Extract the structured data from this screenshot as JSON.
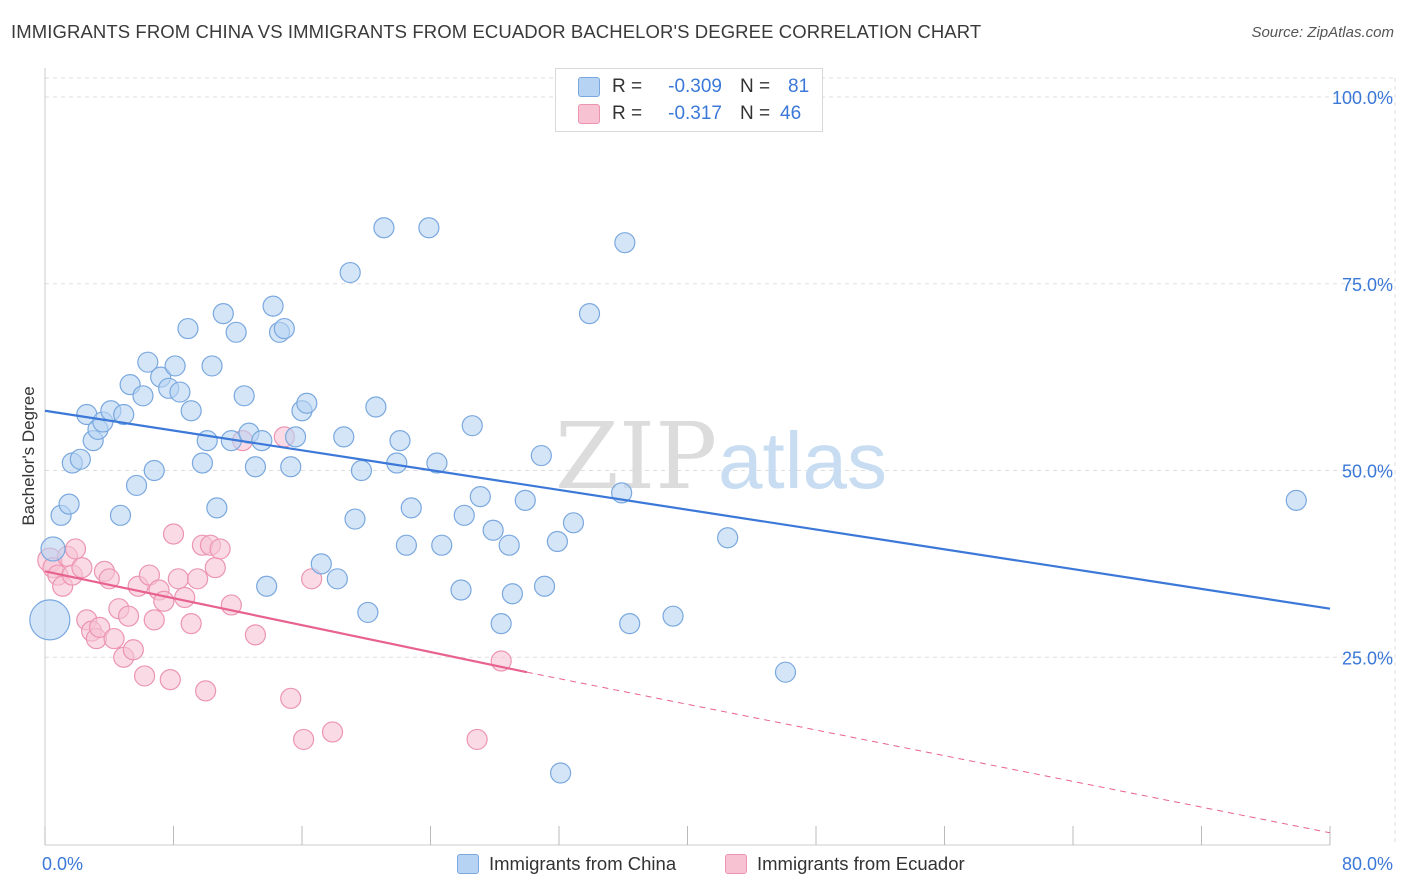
{
  "header": {
    "title": "IMMIGRANTS FROM CHINA VS IMMIGRANTS FROM ECUADOR BACHELOR'S DEGREE CORRELATION CHART",
    "source": "Source: ZipAtlas.com"
  },
  "watermark": {
    "zip": "ZIP",
    "atlas": "atlas"
  },
  "legend": {
    "china": {
      "r_label": "R =",
      "r_value": "-0.309",
      "n_label": "N =",
      "n_value": "81"
    },
    "ecuador": {
      "r_label": "R =",
      "r_value": "-0.317",
      "n_label": "N =",
      "n_value": "46"
    }
  },
  "bottom_legend": {
    "china": "Immigrants from China",
    "ecuador": "Immigrants from Ecuador"
  },
  "colors": {
    "china_fill": "#b7d3f3",
    "china_stroke": "#7aa8de",
    "china_line": "#3b78d8",
    "ecuador_fill": "#f7c3d3",
    "ecuador_stroke": "#ec94b1",
    "ecuador_line": "#e8628e",
    "axis_text": "#3b78d8",
    "grid": "#dddddd"
  },
  "chart_data": {
    "type": "scatter",
    "title": "IMMIGRANTS FROM CHINA VS IMMIGRANTS FROM ECUADOR BACHELOR'S DEGREE CORRELATION CHART",
    "xlabel": "",
    "ylabel": "Bachelor's Degree",
    "xlim": [
      0,
      80
    ],
    "ylim": [
      0,
      100
    ],
    "x_tick_labels": [
      "0.0%",
      "80.0%"
    ],
    "y_ticks": [
      25,
      50,
      75,
      100
    ],
    "y_tick_labels": [
      "25.0%",
      "50.0%",
      "75.0%",
      "100.0%"
    ],
    "grid": true,
    "legend_placement": "top-center",
    "series": [
      {
        "name": "Immigrants from China",
        "r": -0.309,
        "n": 81,
        "trend": {
          "x": [
            0,
            80
          ],
          "y": [
            58.0,
            31.5
          ]
        },
        "points": [
          [
            0.3,
            30.0,
            20
          ],
          [
            0.5,
            39.5,
            12
          ],
          [
            1.0,
            44.0,
            10
          ],
          [
            1.5,
            45.5,
            10
          ],
          [
            1.7,
            51.0,
            10
          ],
          [
            2.2,
            51.5,
            10
          ],
          [
            2.6,
            57.5,
            10
          ],
          [
            3.0,
            54.0,
            10
          ],
          [
            3.3,
            55.5,
            10
          ],
          [
            3.6,
            56.5,
            10
          ],
          [
            4.1,
            58.0,
            10
          ],
          [
            4.7,
            44.0,
            10
          ],
          [
            4.9,
            57.5,
            10
          ],
          [
            5.3,
            61.5,
            10
          ],
          [
            5.7,
            48.0,
            10
          ],
          [
            6.1,
            60.0,
            10
          ],
          [
            6.4,
            64.5,
            10
          ],
          [
            6.8,
            50.0,
            10
          ],
          [
            7.2,
            62.5,
            10
          ],
          [
            7.7,
            61.0,
            10
          ],
          [
            8.1,
            64.0,
            10
          ],
          [
            8.4,
            60.5,
            10
          ],
          [
            8.9,
            69.0,
            10
          ],
          [
            9.1,
            58.0,
            10
          ],
          [
            9.8,
            51.0,
            10
          ],
          [
            10.1,
            54.0,
            10
          ],
          [
            10.4,
            64.0,
            10
          ],
          [
            10.7,
            45.0,
            10
          ],
          [
            11.1,
            71.0,
            10
          ],
          [
            11.6,
            54.0,
            10
          ],
          [
            11.9,
            68.5,
            10
          ],
          [
            12.4,
            60.0,
            10
          ],
          [
            12.7,
            55.0,
            10
          ],
          [
            13.1,
            50.5,
            10
          ],
          [
            13.5,
            54.0,
            10
          ],
          [
            13.8,
            34.5,
            10
          ],
          [
            14.2,
            72.0,
            10
          ],
          [
            14.6,
            68.5,
            10
          ],
          [
            14.9,
            69.0,
            10
          ],
          [
            15.3,
            50.5,
            10
          ],
          [
            15.6,
            54.5,
            10
          ],
          [
            16.0,
            58.0,
            10
          ],
          [
            16.3,
            59.0,
            10
          ],
          [
            17.2,
            37.5,
            10
          ],
          [
            18.2,
            35.5,
            10
          ],
          [
            18.6,
            54.5,
            10
          ],
          [
            19.0,
            76.5,
            10
          ],
          [
            19.3,
            43.5,
            10
          ],
          [
            19.7,
            50.0,
            10
          ],
          [
            20.1,
            31.0,
            10
          ],
          [
            20.6,
            58.5,
            10
          ],
          [
            21.1,
            82.5,
            10
          ],
          [
            21.9,
            51.0,
            10
          ],
          [
            22.1,
            54.0,
            10
          ],
          [
            22.5,
            40.0,
            10
          ],
          [
            22.8,
            45.0,
            10
          ],
          [
            23.9,
            82.5,
            10
          ],
          [
            24.4,
            51.0,
            10
          ],
          [
            24.7,
            40.0,
            10
          ],
          [
            25.9,
            34.0,
            10
          ],
          [
            26.1,
            44.0,
            10
          ],
          [
            26.6,
            56.0,
            10
          ],
          [
            27.1,
            46.5,
            10
          ],
          [
            27.9,
            42.0,
            10
          ],
          [
            28.4,
            29.5,
            10
          ],
          [
            28.9,
            40.0,
            10
          ],
          [
            29.1,
            33.5,
            10
          ],
          [
            29.9,
            46.0,
            10
          ],
          [
            30.9,
            52.0,
            10
          ],
          [
            31.1,
            34.5,
            10
          ],
          [
            31.9,
            40.5,
            10
          ],
          [
            32.1,
            9.5,
            10
          ],
          [
            32.9,
            43.0,
            10
          ],
          [
            33.9,
            71.0,
            10
          ],
          [
            35.9,
            47.0,
            10
          ],
          [
            36.1,
            80.5,
            10
          ],
          [
            36.4,
            29.5,
            10
          ],
          [
            39.1,
            30.5,
            10
          ],
          [
            42.5,
            41.0,
            10
          ],
          [
            46.1,
            23.0,
            10
          ],
          [
            77.9,
            46.0,
            10
          ]
        ]
      },
      {
        "name": "Immigrants from Ecuador",
        "r": -0.317,
        "n": 46,
        "trend": {
          "x": [
            0,
            30
          ],
          "y": [
            36.5,
            23.0
          ]
        },
        "trend_dashed": {
          "x": [
            30,
            80
          ],
          "y": [
            23.0,
            1.5
          ]
        },
        "points": [
          [
            0.3,
            38.0,
            12
          ],
          [
            0.5,
            37.0,
            10
          ],
          [
            0.8,
            36.0,
            10
          ],
          [
            1.1,
            34.5,
            10
          ],
          [
            1.4,
            38.5,
            10
          ],
          [
            1.7,
            36.0,
            10
          ],
          [
            1.9,
            39.5,
            10
          ],
          [
            2.3,
            37.0,
            10
          ],
          [
            2.6,
            30.0,
            10
          ],
          [
            2.9,
            28.5,
            10
          ],
          [
            3.2,
            27.5,
            10
          ],
          [
            3.4,
            29.0,
            10
          ],
          [
            3.7,
            36.5,
            10
          ],
          [
            4.0,
            35.5,
            10
          ],
          [
            4.3,
            27.5,
            10
          ],
          [
            4.6,
            31.5,
            10
          ],
          [
            4.9,
            25.0,
            10
          ],
          [
            5.2,
            30.5,
            10
          ],
          [
            5.5,
            26.0,
            10
          ],
          [
            5.8,
            34.5,
            10
          ],
          [
            6.2,
            22.5,
            10
          ],
          [
            6.5,
            36.0,
            10
          ],
          [
            6.8,
            30.0,
            10
          ],
          [
            7.1,
            34.0,
            10
          ],
          [
            7.4,
            32.5,
            10
          ],
          [
            7.8,
            22.0,
            10
          ],
          [
            8.0,
            41.5,
            10
          ],
          [
            8.3,
            35.5,
            10
          ],
          [
            8.7,
            33.0,
            10
          ],
          [
            9.1,
            29.5,
            10
          ],
          [
            9.5,
            35.5,
            10
          ],
          [
            9.8,
            40.0,
            10
          ],
          [
            10.0,
            20.5,
            10
          ],
          [
            10.3,
            40.0,
            10
          ],
          [
            10.6,
            37.0,
            10
          ],
          [
            10.9,
            39.5,
            10
          ],
          [
            11.6,
            32.0,
            10
          ],
          [
            12.3,
            54.0,
            10
          ],
          [
            13.1,
            28.0,
            10
          ],
          [
            14.9,
            54.5,
            10
          ],
          [
            15.3,
            19.5,
            10
          ],
          [
            16.1,
            14.0,
            10
          ],
          [
            16.6,
            35.5,
            10
          ],
          [
            17.9,
            15.0,
            10
          ],
          [
            26.9,
            14.0,
            10
          ],
          [
            28.4,
            24.5,
            10
          ]
        ]
      }
    ]
  }
}
